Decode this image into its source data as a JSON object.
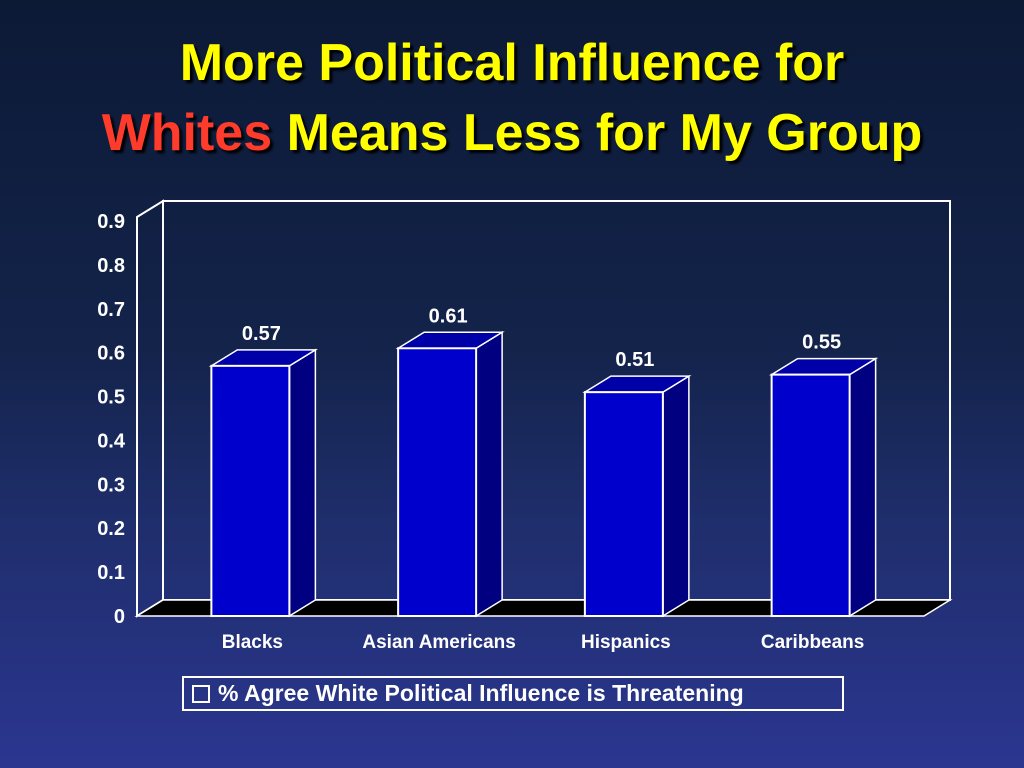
{
  "title": {
    "line1": "More Political Influence for",
    "line2_highlight": "Whites",
    "line2_rest": " Means Less for My Group"
  },
  "colors": {
    "title": "#ffff00",
    "title_highlight": "#ff3b2b",
    "bar_front": "#0000cc",
    "bar_side": "#000080",
    "bar_top": "#0000a8",
    "floor": "#000000",
    "text": "#ffffff"
  },
  "chart_data": {
    "type": "bar",
    "style": "3d",
    "categories": [
      "Blacks",
      "Asian Americans",
      "Hispanics",
      "Caribbeans"
    ],
    "series": [
      {
        "name": "% Agree White Political Influence is Threatening",
        "values": [
          0.57,
          0.61,
          0.51,
          0.55
        ]
      }
    ],
    "data_labels": [
      "0.57",
      "0.61",
      "0.51",
      "0.55"
    ],
    "ylim": [
      0,
      0.9
    ],
    "yticks": [
      0,
      0.1,
      0.2,
      0.3,
      0.4,
      0.5,
      0.6,
      0.7,
      0.8,
      0.9
    ],
    "ytick_labels": [
      "0",
      "0.1",
      "0.2",
      "0.3",
      "0.4",
      "0.5",
      "0.6",
      "0.7",
      "0.8",
      "0.9"
    ],
    "grid": false,
    "legend_position": "bottom"
  }
}
